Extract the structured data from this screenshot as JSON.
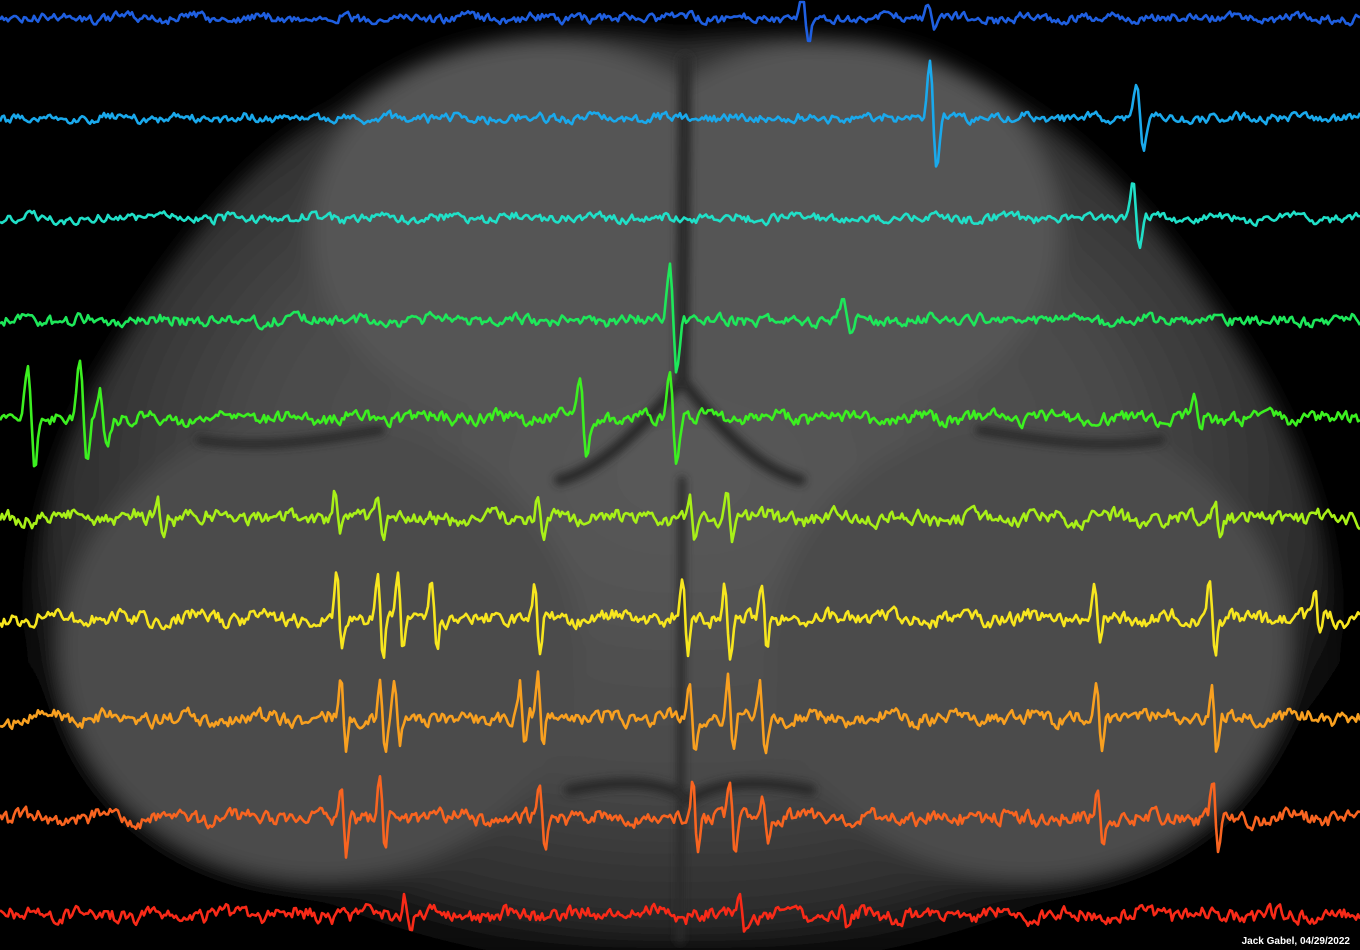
{
  "credit": "Jack Gabel, 04/29/2022",
  "background": {
    "kind": "grayscale brain scan (coronal section)",
    "tone_outer": "#000000",
    "tone_tissue": "#4a4a4a",
    "tone_highlight": "#6a6a6a"
  },
  "traces": [
    {
      "name": "trace-1",
      "color": "#1f5fe0"
    },
    {
      "name": "trace-2",
      "color": "#1aa9ec"
    },
    {
      "name": "trace-3",
      "color": "#20e0c8"
    },
    {
      "name": "trace-4",
      "color": "#1ee85a"
    },
    {
      "name": "trace-5",
      "color": "#3cf020"
    },
    {
      "name": "trace-6",
      "color": "#a8f018"
    },
    {
      "name": "trace-7",
      "color": "#f7e61f"
    },
    {
      "name": "trace-8",
      "color": "#f8a020"
    },
    {
      "name": "trace-9",
      "color": "#f86420"
    },
    {
      "name": "trace-10",
      "color": "#f82a18"
    }
  ]
}
